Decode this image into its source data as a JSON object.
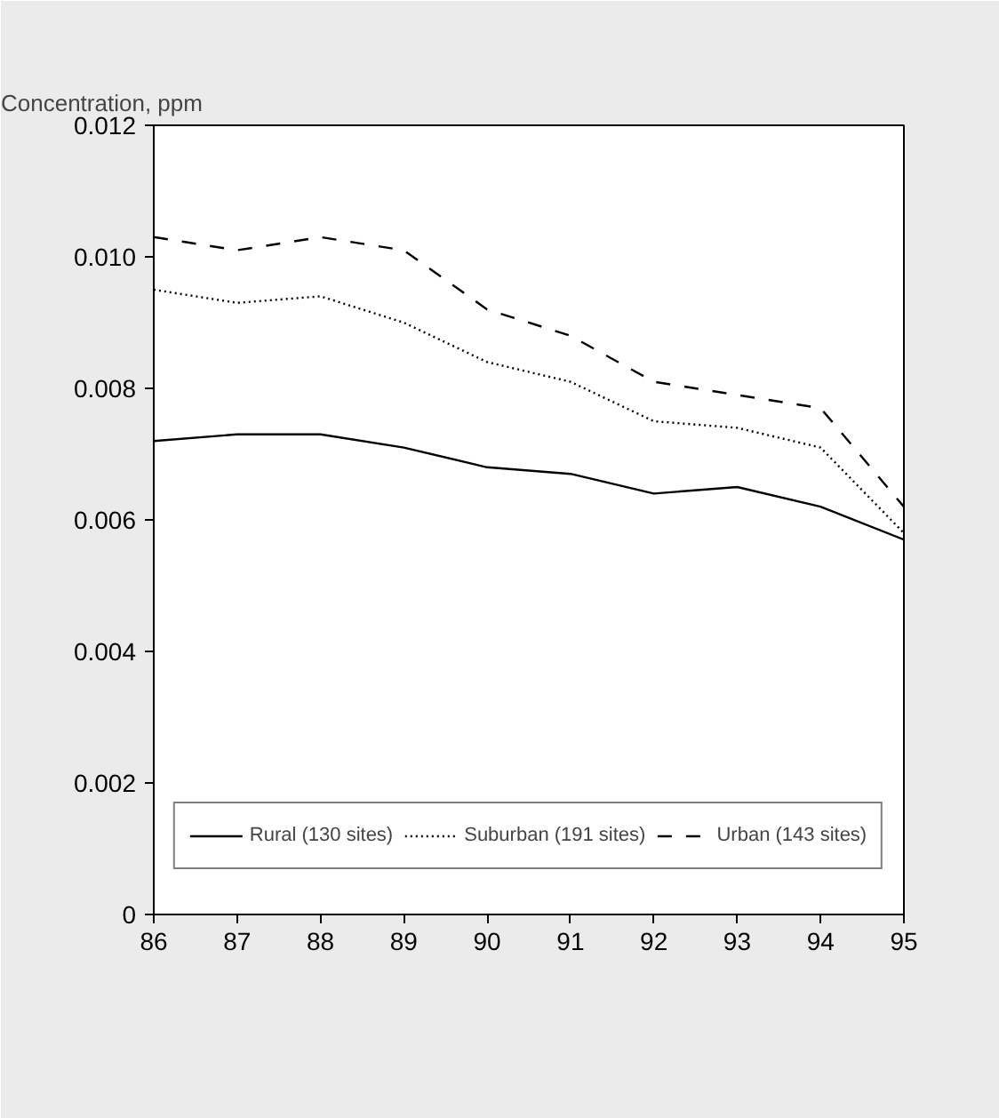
{
  "chart_data": {
    "type": "line",
    "ylabel": "Concentration, ppm",
    "x": [
      86,
      87,
      88,
      89,
      90,
      91,
      92,
      93,
      94,
      95
    ],
    "xlim": [
      86,
      95
    ],
    "xticks": [
      86,
      87,
      88,
      89,
      90,
      91,
      92,
      93,
      94,
      95
    ],
    "ylim": [
      0,
      0.012
    ],
    "yticks": [
      {
        "value": 0,
        "label": "0"
      },
      {
        "value": 0.002,
        "label": "0.002"
      },
      {
        "value": 0.004,
        "label": "0.004"
      },
      {
        "value": 0.006,
        "label": "0.006"
      },
      {
        "value": 0.008,
        "label": "0.008"
      },
      {
        "value": 0.01,
        "label": "0.010"
      },
      {
        "value": 0.012,
        "label": "0.012"
      }
    ],
    "grid": false,
    "legend": "bottom",
    "marker": "none",
    "series": [
      {
        "name": "Rural (130 sites)",
        "color": "#000000",
        "line_style": "solid",
        "values": [
          0.0072,
          0.0073,
          0.0073,
          0.0071,
          0.0068,
          0.0067,
          0.0064,
          0.0065,
          0.0062,
          0.0057
        ]
      },
      {
        "name": "Suburban (191 sites)",
        "color": "#000000",
        "line_style": "dotted",
        "values": [
          0.0095,
          0.0093,
          0.0094,
          0.009,
          0.0084,
          0.0081,
          0.0075,
          0.0074,
          0.0071,
          0.0058
        ]
      },
      {
        "name": "Urban (143 sites)",
        "color": "#000000",
        "line_style": "dashed",
        "values": [
          0.0103,
          0.0101,
          0.0103,
          0.0101,
          0.0092,
          0.0088,
          0.0081,
          0.0079,
          0.0077,
          0.0062
        ]
      }
    ]
  }
}
